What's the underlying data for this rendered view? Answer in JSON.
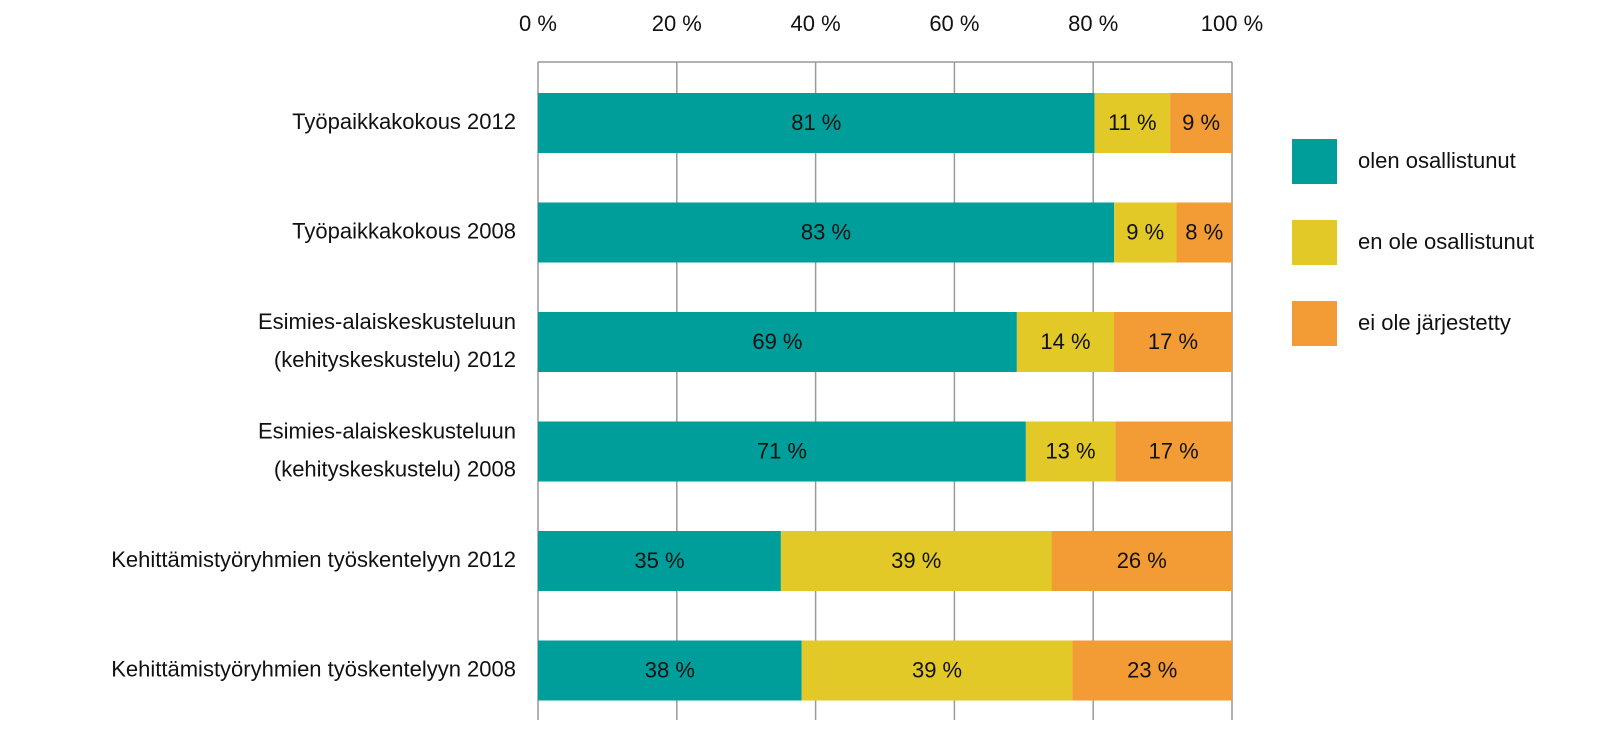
{
  "chart_data": {
    "type": "bar",
    "orientation": "horizontal",
    "stacked": "percent",
    "categories": [
      [
        "Työpaikkakokous 2012"
      ],
      [
        "Työpaikkakokous 2008"
      ],
      [
        "Esimies-alaiskeskusteluun",
        "(kehityskeskustelu) 2012"
      ],
      [
        "Esimies-alaiskeskusteluun",
        "(kehityskeskustelu) 2008"
      ],
      [
        "Kehittämistyöryhmien työskentelyyn 2012"
      ],
      [
        "Kehittämistyöryhmien työskentelyyn 2008"
      ]
    ],
    "series": [
      {
        "name": "olen osallistunut",
        "color": "#009e9a",
        "values": [
          81,
          83,
          69,
          71,
          35,
          38
        ],
        "value_labels": [
          "81 %",
          "83 %",
          "69 %",
          "71 %",
          "35 %",
          "38 %"
        ]
      },
      {
        "name": "en ole osallistunut",
        "color": "#e2c928",
        "values": [
          11,
          9,
          14,
          13,
          39,
          39
        ],
        "value_labels": [
          "11 %",
          "9 %",
          "14 %",
          "13 %",
          "39 %",
          "39 %"
        ]
      },
      {
        "name": "ei ole järjestetty",
        "color": "#f39b35",
        "values": [
          9,
          8,
          17,
          17,
          26,
          23
        ],
        "value_labels": [
          "9 %",
          "8 %",
          "17 %",
          "17 %",
          "26 %",
          "23 %"
        ]
      }
    ],
    "xlim": [
      0,
      100
    ],
    "xticks": [
      {
        "value": 0,
        "label": "0 %"
      },
      {
        "value": 20,
        "label": "20 %"
      },
      {
        "value": 40,
        "label": "40 %"
      },
      {
        "value": 60,
        "label": "60 %"
      },
      {
        "value": 80,
        "label": "80 %"
      },
      {
        "value": 100,
        "label": "100 %"
      }
    ],
    "grid": true,
    "legend": "right"
  }
}
